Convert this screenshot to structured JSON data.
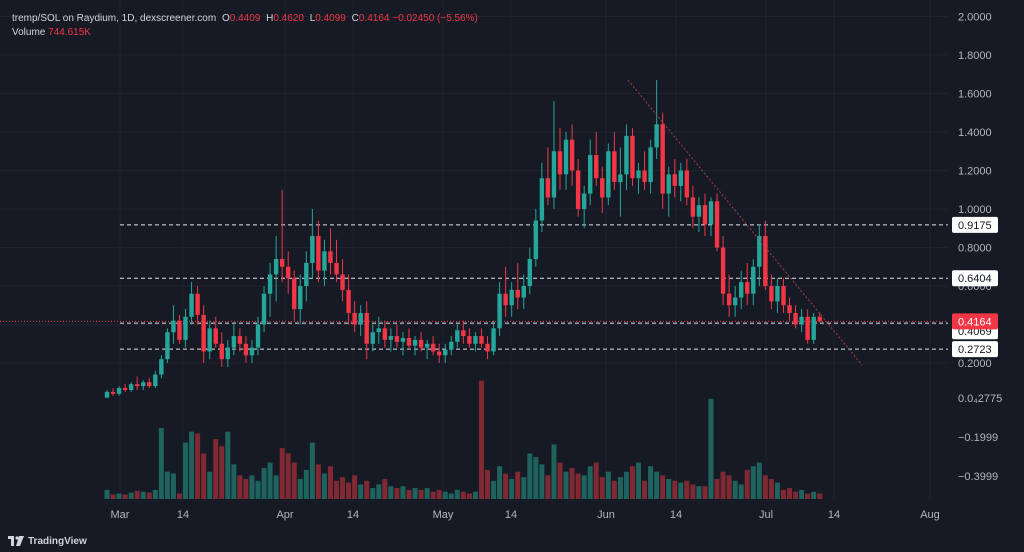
{
  "legend": {
    "symbol": "tremp/SOL on Raydium, 1D, dexscreener.com",
    "open_label": "O",
    "open": "0.4409",
    "high_label": "H",
    "high": "0.4620",
    "low_label": "L",
    "low": "0.4099",
    "close_label": "C",
    "close": "0.4164",
    "change": "−0.02450 (−5.56%)",
    "volume_label": "Volume",
    "volume": "744.615K"
  },
  "footer": {
    "brand": "TradingView"
  },
  "colors": {
    "up": "#26a69a",
    "down": "#f23645",
    "background": "#161a25",
    "axis_text": "#b2b5be"
  },
  "chart_data": {
    "type": "candlestick",
    "price_axis": {
      "ticks": [
        2.0,
        1.8,
        1.6,
        1.4,
        1.2,
        1.0,
        0.8,
        0.6,
        0.4,
        0.2
      ],
      "tick_labels": [
        "2.0000",
        "1.8000",
        "1.6000",
        "1.4000",
        "1.2000",
        "1.0000",
        "0.8000",
        "0.6000",
        "0.4000",
        "0.2000"
      ],
      "volume_tick_labels": [
        "0.0₄2775",
        "−0.1999",
        "−0.3999"
      ]
    },
    "x_axis": {
      "labels": [
        "Mar",
        "14",
        "Apr",
        "14",
        "May",
        "14",
        "Jun",
        "14",
        "Jul",
        "14",
        "Aug"
      ]
    },
    "horizontal_lines": [
      {
        "value": 0.9175,
        "label": "0.9175"
      },
      {
        "value": 0.6404,
        "label": "0.6404"
      },
      {
        "value": 0.4069,
        "label": "0.4069"
      },
      {
        "value": 0.2723,
        "label": "0.2723"
      }
    ],
    "current_price": {
      "value": 0.4164,
      "label": "0.4164"
    },
    "trendline": {
      "from": [
        "Jun 5",
        1.67
      ],
      "to": [
        "Jul 16",
        0.19
      ]
    },
    "candles": [
      [
        0.02,
        0.06,
        0.02,
        0.05
      ],
      [
        0.05,
        0.07,
        0.03,
        0.04
      ],
      [
        0.04,
        0.08,
        0.03,
        0.07
      ],
      [
        0.07,
        0.09,
        0.05,
        0.06
      ],
      [
        0.06,
        0.1,
        0.05,
        0.09
      ],
      [
        0.09,
        0.13,
        0.06,
        0.08
      ],
      [
        0.08,
        0.11,
        0.06,
        0.1
      ],
      [
        0.1,
        0.12,
        0.07,
        0.08
      ],
      [
        0.08,
        0.16,
        0.07,
        0.14
      ],
      [
        0.14,
        0.24,
        0.12,
        0.22
      ],
      [
        0.22,
        0.38,
        0.2,
        0.36
      ],
      [
        0.36,
        0.5,
        0.3,
        0.42
      ],
      [
        0.42,
        0.45,
        0.3,
        0.32
      ],
      [
        0.32,
        0.48,
        0.28,
        0.44
      ],
      [
        0.44,
        0.62,
        0.4,
        0.56
      ],
      [
        0.56,
        0.6,
        0.4,
        0.45
      ],
      [
        0.45,
        0.5,
        0.2,
        0.26
      ],
      [
        0.26,
        0.42,
        0.22,
        0.38
      ],
      [
        0.38,
        0.44,
        0.28,
        0.3
      ],
      [
        0.3,
        0.36,
        0.18,
        0.22
      ],
      [
        0.22,
        0.32,
        0.18,
        0.28
      ],
      [
        0.28,
        0.4,
        0.24,
        0.34
      ],
      [
        0.34,
        0.38,
        0.26,
        0.3
      ],
      [
        0.3,
        0.34,
        0.2,
        0.24
      ],
      [
        0.24,
        0.32,
        0.2,
        0.28
      ],
      [
        0.28,
        0.44,
        0.24,
        0.4
      ],
      [
        0.4,
        0.6,
        0.36,
        0.56
      ],
      [
        0.56,
        0.72,
        0.44,
        0.66
      ],
      [
        0.66,
        0.86,
        0.52,
        0.74
      ],
      [
        0.74,
        1.1,
        0.62,
        0.7
      ],
      [
        0.7,
        0.78,
        0.56,
        0.64
      ],
      [
        0.64,
        0.68,
        0.42,
        0.48
      ],
      [
        0.48,
        0.66,
        0.4,
        0.6
      ],
      [
        0.6,
        0.78,
        0.52,
        0.72
      ],
      [
        0.72,
        1.0,
        0.64,
        0.86
      ],
      [
        0.86,
        0.94,
        0.62,
        0.68
      ],
      [
        0.68,
        0.84,
        0.6,
        0.78
      ],
      [
        0.78,
        0.9,
        0.66,
        0.72
      ],
      [
        0.72,
        0.84,
        0.62,
        0.66
      ],
      [
        0.66,
        0.74,
        0.52,
        0.58
      ],
      [
        0.58,
        0.66,
        0.4,
        0.46
      ],
      [
        0.46,
        0.52,
        0.36,
        0.4
      ],
      [
        0.4,
        0.5,
        0.34,
        0.46
      ],
      [
        0.46,
        0.52,
        0.22,
        0.3
      ],
      [
        0.3,
        0.4,
        0.26,
        0.36
      ],
      [
        0.36,
        0.44,
        0.3,
        0.38
      ],
      [
        0.38,
        0.42,
        0.28,
        0.32
      ],
      [
        0.32,
        0.38,
        0.26,
        0.34
      ],
      [
        0.34,
        0.4,
        0.28,
        0.31
      ],
      [
        0.31,
        0.36,
        0.24,
        0.33
      ],
      [
        0.33,
        0.38,
        0.27,
        0.29
      ],
      [
        0.29,
        0.34,
        0.24,
        0.32
      ],
      [
        0.32,
        0.36,
        0.26,
        0.28
      ],
      [
        0.28,
        0.32,
        0.22,
        0.3
      ],
      [
        0.3,
        0.34,
        0.24,
        0.26
      ],
      [
        0.26,
        0.3,
        0.2,
        0.24
      ],
      [
        0.24,
        0.3,
        0.2,
        0.27
      ],
      [
        0.27,
        0.34,
        0.24,
        0.31
      ],
      [
        0.31,
        0.4,
        0.28,
        0.37
      ],
      [
        0.37,
        0.42,
        0.3,
        0.34
      ],
      [
        0.34,
        0.38,
        0.28,
        0.3
      ],
      [
        0.3,
        0.36,
        0.26,
        0.34
      ],
      [
        0.34,
        0.38,
        0.28,
        0.3
      ],
      [
        0.3,
        0.34,
        0.22,
        0.26
      ],
      [
        0.26,
        0.42,
        0.24,
        0.38
      ],
      [
        0.38,
        0.62,
        0.34,
        0.56
      ],
      [
        0.56,
        0.7,
        0.44,
        0.5
      ],
      [
        0.5,
        0.62,
        0.44,
        0.58
      ],
      [
        0.58,
        0.72,
        0.48,
        0.54
      ],
      [
        0.54,
        0.66,
        0.48,
        0.6
      ],
      [
        0.6,
        0.8,
        0.56,
        0.74
      ],
      [
        0.74,
        1.0,
        0.7,
        0.94
      ],
      [
        0.94,
        1.24,
        0.88,
        1.16
      ],
      [
        1.16,
        1.32,
        1.02,
        1.06
      ],
      [
        1.06,
        1.56,
        1.0,
        1.3
      ],
      [
        1.3,
        1.42,
        1.1,
        1.18
      ],
      [
        1.18,
        1.4,
        1.1,
        1.36
      ],
      [
        1.36,
        1.44,
        1.12,
        1.2
      ],
      [
        1.2,
        1.26,
        0.96,
        1.0
      ],
      [
        1.0,
        1.12,
        0.9,
        1.08
      ],
      [
        1.08,
        1.36,
        1.02,
        1.28
      ],
      [
        1.28,
        1.4,
        1.12,
        1.16
      ],
      [
        1.16,
        1.22,
        0.98,
        1.06
      ],
      [
        1.06,
        1.34,
        1.02,
        1.3
      ],
      [
        1.3,
        1.4,
        1.1,
        1.14
      ],
      [
        1.14,
        1.32,
        0.96,
        1.18
      ],
      [
        1.18,
        1.44,
        1.1,
        1.38
      ],
      [
        1.38,
        1.42,
        1.12,
        1.16
      ],
      [
        1.16,
        1.24,
        1.08,
        1.2
      ],
      [
        1.2,
        1.3,
        1.1,
        1.14
      ],
      [
        1.14,
        1.36,
        1.08,
        1.32
      ],
      [
        1.32,
        1.67,
        1.26,
        1.44
      ],
      [
        1.44,
        1.5,
        1.0,
        1.08
      ],
      [
        1.08,
        1.22,
        0.96,
        1.18
      ],
      [
        1.18,
        1.26,
        1.06,
        1.12
      ],
      [
        1.12,
        1.24,
        1.04,
        1.2
      ],
      [
        1.2,
        1.26,
        1.02,
        1.06
      ],
      [
        1.06,
        1.12,
        0.9,
        0.96
      ],
      [
        0.96,
        1.06,
        0.88,
        1.02
      ],
      [
        1.02,
        1.08,
        0.86,
        0.92
      ],
      [
        0.92,
        1.06,
        0.86,
        1.04
      ],
      [
        1.04,
        1.08,
        0.78,
        0.8
      ],
      [
        0.8,
        0.86,
        0.5,
        0.56
      ],
      [
        0.56,
        0.66,
        0.44,
        0.5
      ],
      [
        0.5,
        0.6,
        0.44,
        0.54
      ],
      [
        0.54,
        0.68,
        0.48,
        0.62
      ],
      [
        0.62,
        0.72,
        0.5,
        0.56
      ],
      [
        0.56,
        0.74,
        0.5,
        0.7
      ],
      [
        0.7,
        0.92,
        0.6,
        0.86
      ],
      [
        0.86,
        0.94,
        0.58,
        0.6
      ],
      [
        0.6,
        0.66,
        0.48,
        0.52
      ],
      [
        0.52,
        0.64,
        0.46,
        0.6
      ],
      [
        0.6,
        0.64,
        0.46,
        0.5
      ],
      [
        0.5,
        0.54,
        0.42,
        0.46
      ],
      [
        0.46,
        0.5,
        0.38,
        0.4
      ],
      [
        0.4,
        0.48,
        0.36,
        0.44
      ],
      [
        0.44,
        0.48,
        0.3,
        0.32
      ],
      [
        0.32,
        0.46,
        0.3,
        0.44
      ],
      [
        0.44,
        0.46,
        0.41,
        0.4164
      ]
    ],
    "volume_relative": [
      0.1,
      0.05,
      0.06,
      0.05,
      0.07,
      0.09,
      0.08,
      0.07,
      0.1,
      0.78,
      0.3,
      0.28,
      0.06,
      0.62,
      0.74,
      0.72,
      0.5,
      0.3,
      0.66,
      0.58,
      0.74,
      0.38,
      0.26,
      0.22,
      0.26,
      0.2,
      0.34,
      0.4,
      0.26,
      0.56,
      0.5,
      0.4,
      0.22,
      0.32,
      0.62,
      0.38,
      0.28,
      0.36,
      0.2,
      0.24,
      0.18,
      0.26,
      0.16,
      0.2,
      0.12,
      0.16,
      0.22,
      0.14,
      0.12,
      0.14,
      0.1,
      0.12,
      0.1,
      0.12,
      0.08,
      0.1,
      0.08,
      0.06,
      0.1,
      0.08,
      0.06,
      0.08,
      1.3,
      0.32,
      0.2,
      0.36,
      0.28,
      0.22,
      0.3,
      0.24,
      0.5,
      0.46,
      0.38,
      0.26,
      0.6,
      0.4,
      0.3,
      0.34,
      0.28,
      0.26,
      0.36,
      0.4,
      0.24,
      0.3,
      0.2,
      0.24,
      0.3,
      0.36,
      0.4,
      0.2,
      0.36,
      0.3,
      0.26,
      0.22,
      0.2,
      0.18,
      0.2,
      0.16,
      0.14,
      0.14,
      1.1,
      0.22,
      0.3,
      0.26,
      0.2,
      0.16,
      0.32,
      0.36,
      0.4,
      0.26,
      0.22,
      0.18,
      0.1,
      0.12,
      0.08,
      0.1,
      0.06,
      0.08,
      0.06
    ]
  }
}
